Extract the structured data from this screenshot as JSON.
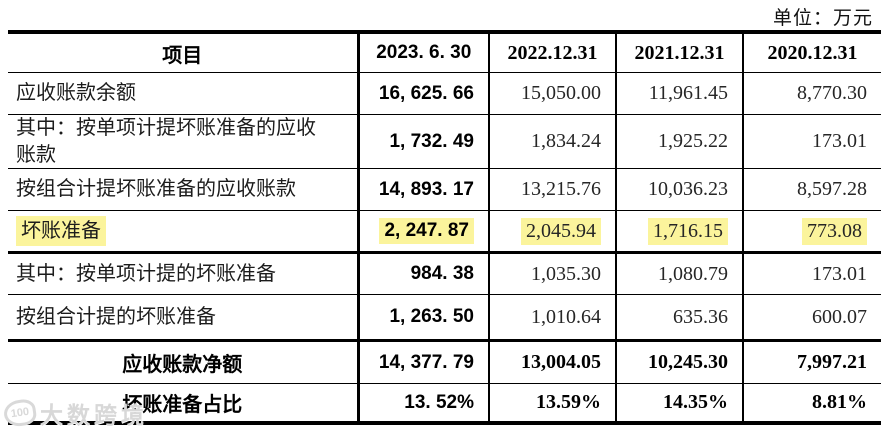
{
  "unit_label": "单位：万元",
  "colors": {
    "highlight": "#fbf49c",
    "border": "#000000"
  },
  "watermark": {
    "logo": "100",
    "text": "大数跨境"
  },
  "table": {
    "columns": [
      "项目",
      "2023. 6. 30",
      "2022.12.31",
      "2021.12.31",
      "2020.12.31"
    ],
    "rows": [
      {
        "label": "应收账款余额",
        "values": [
          "16, 625. 66",
          "15,050.00",
          "11,961.45",
          "8,770.30"
        ]
      },
      {
        "label": "其中：按单项计提坏账准备的应收\n账款",
        "values": [
          "1, 732. 49",
          "1,834.24",
          "1,925.22",
          "173.01"
        ]
      },
      {
        "label": "按组合计提坏账准备的应收账款",
        "values": [
          "14, 893. 17",
          "13,215.76",
          "10,036.23",
          "8,597.28"
        ]
      },
      {
        "label": "坏账准备",
        "highlighted": true,
        "values": [
          "2, 247. 87",
          "2,045.94",
          "1,716.15",
          "773.08"
        ]
      },
      {
        "label": "其中：按单项计提的坏账准备",
        "values": [
          "984. 38",
          "1,035.30",
          "1,080.79",
          "173.01"
        ]
      },
      {
        "label": "按组合计提的坏账准备",
        "values": [
          "1, 263. 50",
          "1,010.64",
          "635.36",
          "600.07"
        ]
      },
      {
        "label": "应收账款净额",
        "bold": true,
        "values": [
          "14, 377. 79",
          "13,004.05",
          "10,245.30",
          "7,997.21"
        ]
      },
      {
        "label": "坏账准备占比",
        "bold": true,
        "values": [
          "13. 52%",
          "13.59%",
          "14.35%",
          "8.81%"
        ]
      }
    ]
  }
}
